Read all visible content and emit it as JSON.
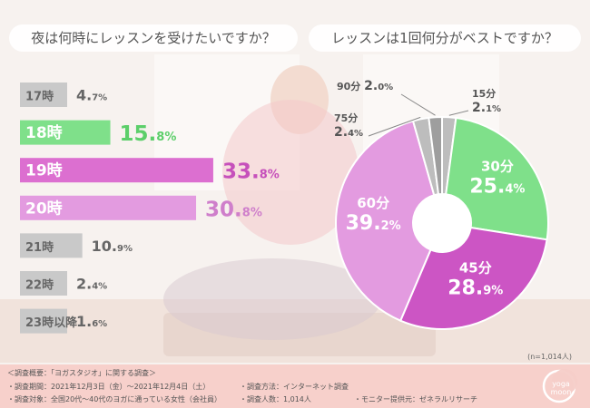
{
  "header": {
    "left_title": "夜は何時にレッスンを受けたいですか？",
    "right_title": "レッスンは1回何分がベストですか？"
  },
  "chart_data": [
    {
      "type": "bar",
      "orientation": "horizontal",
      "categories": [
        "17時",
        "18時",
        "19時",
        "20時",
        "21時",
        "22時",
        "23時以降"
      ],
      "values": [
        4.7,
        15.8,
        33.8,
        30.8,
        10.9,
        2.4,
        1.6
      ],
      "value_labels": [
        {
          "int": "4.",
          "dec": "7%"
        },
        {
          "int": "15.",
          "dec": "8%"
        },
        {
          "int": "33.",
          "dec": "8%"
        },
        {
          "int": "30.",
          "dec": "8%"
        },
        {
          "int": "10.",
          "dec": "9%"
        },
        {
          "int": "2.",
          "dec": "4%"
        },
        {
          "int": "1.",
          "dec": "6%"
        }
      ],
      "colors": [
        "#c9c9c9",
        "#7fe08a",
        "#dc6fd0",
        "#e39be0",
        "#c9c9c9",
        "#c9c9c9",
        "#c9c9c9"
      ],
      "label_colors": [
        "#666666",
        "#ffffff",
        "#ffffff",
        "#ffffff",
        "#666666",
        "#666666",
        "#666666"
      ],
      "value_colors": [
        "#666666",
        "#5ccf6a",
        "#c650bb",
        "#cf7fcb",
        "#666666",
        "#666666",
        "#666666"
      ],
      "title": "夜は何時にレッスンを受けたいですか？"
    },
    {
      "type": "pie",
      "donut": true,
      "categories": [
        "15分",
        "30分",
        "45分",
        "60分",
        "75分",
        "90分"
      ],
      "values": [
        2.1,
        25.4,
        28.9,
        39.2,
        2.4,
        2.0
      ],
      "value_labels": [
        {
          "int": "2.",
          "dec": "1%"
        },
        {
          "int": "25.",
          "dec": "4%"
        },
        {
          "int": "28.",
          "dec": "9%"
        },
        {
          "int": "39.",
          "dec": "2%"
        },
        {
          "int": "2.",
          "dec": "4%"
        },
        {
          "int": "2.",
          "dec": "0%"
        }
      ],
      "colors": [
        "#bdbdbd",
        "#7fe08a",
        "#cc55c4",
        "#e39be0",
        "#bdbdbd",
        "#9e9e9e"
      ],
      "title": "レッスンは1回何分がベストですか？"
    }
  ],
  "sample_note": "(n=1,014人)",
  "footer": {
    "heading": "＜調査概要：「ヨガスタジオ」に関する調査＞",
    "period": "・調査期間：2021年12月3日（金）〜2021年12月4日（土）",
    "target": "・調査対象：全国20代〜40代のヨガに通っている女性（会社員）",
    "method": "・調査方法：インターネット調査",
    "count": "・調査人数：1,014人",
    "provider": "・モニター提供元：ゼネラルリサーチ"
  },
  "logo": {
    "line1": "yoga",
    "line2": "moon"
  }
}
